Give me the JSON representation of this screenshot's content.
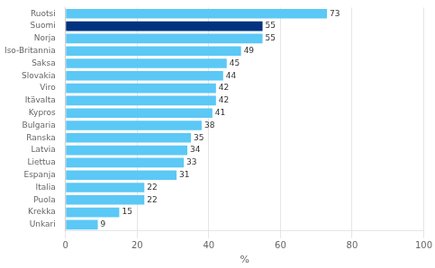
{
  "chart_data": {
    "type": "bar",
    "orientation": "horizontal",
    "categories": [
      "Ruotsi",
      "Suomi",
      "Norja",
      "Iso-Britannia",
      "Saksa",
      "Slovakia",
      "Viro",
      "Itävalta",
      "Kypros",
      "Bulgaria",
      "Ranska",
      "Latvia",
      "Liettua",
      "Espanja",
      "Italia",
      "Puola",
      "Krekka",
      "Unkari"
    ],
    "values": [
      73,
      55,
      55,
      49,
      45,
      44,
      42,
      42,
      41,
      38,
      35,
      34,
      33,
      31,
      22,
      22,
      15,
      9
    ],
    "colors": [
      "#5bc8f5",
      "#003380",
      "#5bc8f5",
      "#5bc8f5",
      "#5bc8f5",
      "#5bc8f5",
      "#5bc8f5",
      "#5bc8f5",
      "#5bc8f5",
      "#5bc8f5",
      "#5bc8f5",
      "#5bc8f5",
      "#5bc8f5",
      "#5bc8f5",
      "#5bc8f5",
      "#5bc8f5",
      "#5bc8f5",
      "#5bc8f5"
    ],
    "xlabel": "%",
    "xlim": [
      0,
      100
    ],
    "xticks": [
      0,
      20,
      40,
      60,
      80,
      100
    ],
    "grid": true,
    "data_labels": true
  }
}
